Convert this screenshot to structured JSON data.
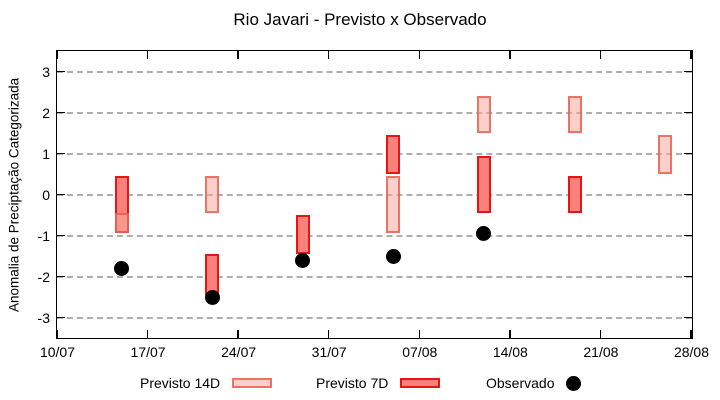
{
  "chart_data": {
    "type": "bar",
    "title": "Rio Javari - Previsto x Observado",
    "ylabel": "Anomalia de Preciptação Categorizada",
    "yticks": [
      3,
      2,
      1,
      0,
      -1,
      -2,
      -3
    ],
    "ylim": [
      -3.5,
      3.5
    ],
    "grid": "horizontal-dashed",
    "xtick_labels": [
      "10/07",
      "17/07",
      "24/07",
      "31/07",
      "07/08",
      "14/08",
      "21/08",
      "28/08"
    ],
    "xtick_days": [
      0,
      7,
      14,
      21,
      28,
      35,
      42,
      49
    ],
    "x_total_days": 49,
    "groups": [
      {
        "date": "15/07",
        "day": 5,
        "previsto_7d": [
          0.45,
          -0.95
        ],
        "previsto_14d": [
          -0.45,
          -0.95
        ],
        "observado": -1.8
      },
      {
        "date": "22/07",
        "day": 12,
        "previsto_7d": [
          -1.45,
          -2.45
        ],
        "previsto_14d": [
          0.45,
          -0.45
        ],
        "observado": -2.5
      },
      {
        "date": "29/07",
        "day": 19,
        "previsto_7d": [
          -0.5,
          -1.45
        ],
        "previsto_14d": null,
        "observado": -1.6
      },
      {
        "date": "05/08",
        "day": 26,
        "previsto_7d": [
          1.45,
          0.5
        ],
        "previsto_14d": [
          0.45,
          -0.95
        ],
        "observado": -1.5
      },
      {
        "date": "12/08",
        "day": 33,
        "previsto_7d": [
          0.95,
          -0.45
        ],
        "previsto_14d": [
          2.4,
          1.5
        ],
        "observado": -0.95
      },
      {
        "date": "19/08",
        "day": 40,
        "previsto_7d": [
          0.45,
          -0.45
        ],
        "previsto_14d": [
          2.4,
          1.5
        ],
        "observado": null
      },
      {
        "date": "26/08",
        "day": 47,
        "previsto_7d": null,
        "previsto_14d": [
          1.45,
          0.5
        ],
        "observado": null
      }
    ],
    "legend": [
      {
        "label": "Previsto 14D",
        "marker": "box-light"
      },
      {
        "label": "Previsto 7D",
        "marker": "box-dark"
      },
      {
        "label": "Observado",
        "marker": "dot"
      }
    ],
    "colors": {
      "previsto_7d_fill": "#f9817b",
      "previsto_7d_border": "#e91414",
      "previsto_14d_fill": "rgba(249,170,158,0.55)",
      "previsto_14d_border": "rgba(234,90,74,0.8)",
      "observado": "#000000",
      "gridline": "#9a9a9a",
      "axis": "#000000"
    }
  }
}
